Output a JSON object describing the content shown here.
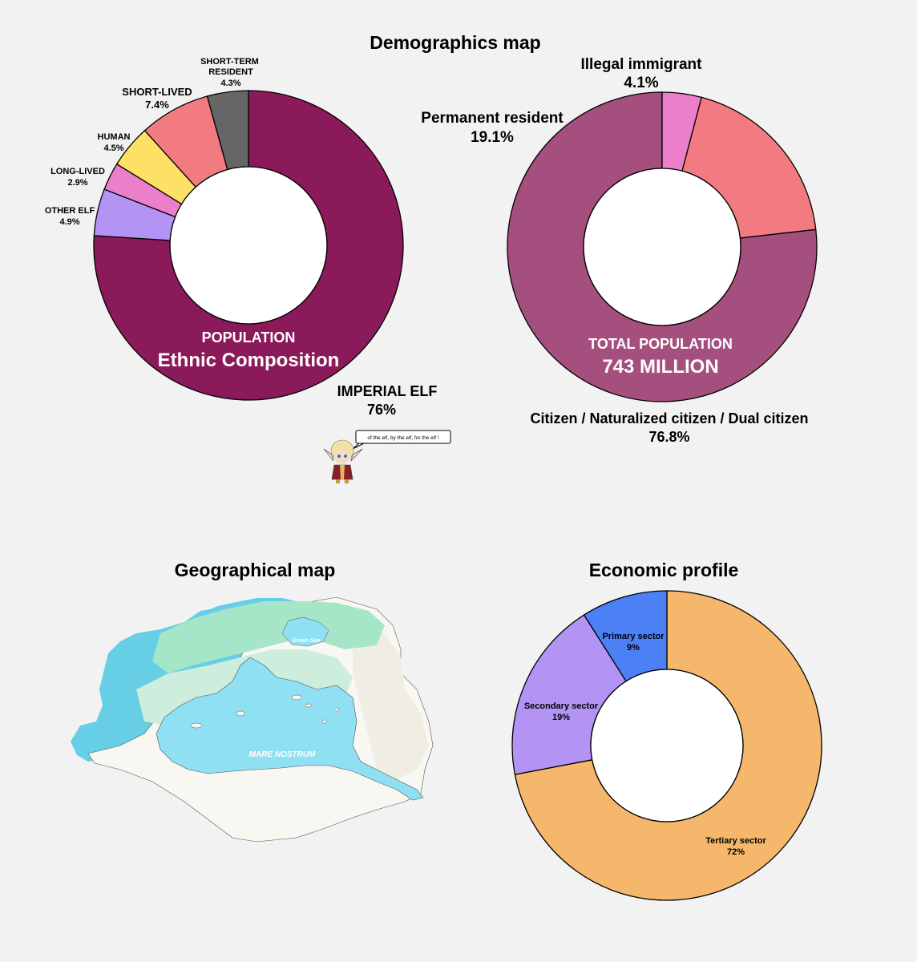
{
  "page": {
    "demographics_title": "Demographics map",
    "geo_title": "Geographical map",
    "econ_title": "Economic profile"
  },
  "mascot": {
    "speech": "of the elf, by the elf, for the elf !"
  },
  "geo_map": {
    "green_sea_label": "Green Sea",
    "mare_nostrum_label": "MARE NOSTRUM",
    "colors": {
      "ocean": "#66cfe6",
      "inner_sea": "#8fe0f2",
      "lowland": "#cdeedd",
      "forest": "#a6e6c8",
      "desert": "#f0eee4",
      "land": "#f8f7f2"
    }
  },
  "chart_data": [
    {
      "id": "ethnic",
      "type": "pie",
      "donut": true,
      "center_label": {
        "line1": "POPULATION",
        "line2": "Ethnic Composition"
      },
      "slices": [
        {
          "label": "IMPERIAL ELF",
          "value": 76,
          "value_label": "76%",
          "color": "#8b1a5a"
        },
        {
          "label": "OTHER ELF",
          "value": 4.9,
          "value_label": "4.9%",
          "color": "#b394f5"
        },
        {
          "label": "LONG-LIVED",
          "value": 2.9,
          "value_label": "2.9%",
          "color": "#ec7fc9"
        },
        {
          "label": "HUMAN",
          "value": 4.5,
          "value_label": "4.5%",
          "color": "#fee066"
        },
        {
          "label": "SHORT-LIVED",
          "value": 7.4,
          "value_label": "7.4%",
          "color": "#f27b81"
        },
        {
          "label": "SHORT-TERM RESIDENT",
          "label_lines": [
            "SHORT-TERM",
            "RESIDENT"
          ],
          "value": 4.3,
          "value_label": "4.3%",
          "color": "#666666"
        }
      ]
    },
    {
      "id": "residency",
      "type": "pie",
      "donut": true,
      "center_label": {
        "line1": "TOTAL POPULATION",
        "line2": "743 MILLION"
      },
      "slices": [
        {
          "label": "Citizen / Naturalized citizen / Dual citizen",
          "value": 76.8,
          "value_label": "76.8%",
          "color": "#a44f7e"
        },
        {
          "label": "Permanent resident",
          "value": 19.1,
          "value_label": "19.1%",
          "color": "#f27b81"
        },
        {
          "label": "Illegal immigrant",
          "value": 4.1,
          "value_label": "4.1%",
          "color": "#ec7fc9"
        }
      ]
    },
    {
      "id": "economy",
      "type": "pie",
      "donut": true,
      "slices": [
        {
          "label": "Tertiary sector",
          "value": 72,
          "value_label": "72%",
          "color": "#f4b76c"
        },
        {
          "label": "Secondary sector",
          "value": 19,
          "value_label": "19%",
          "color": "#b394f5"
        },
        {
          "label": "Primary sector",
          "value": 9,
          "value_label": "9%",
          "color": "#4c81f5"
        }
      ]
    }
  ]
}
